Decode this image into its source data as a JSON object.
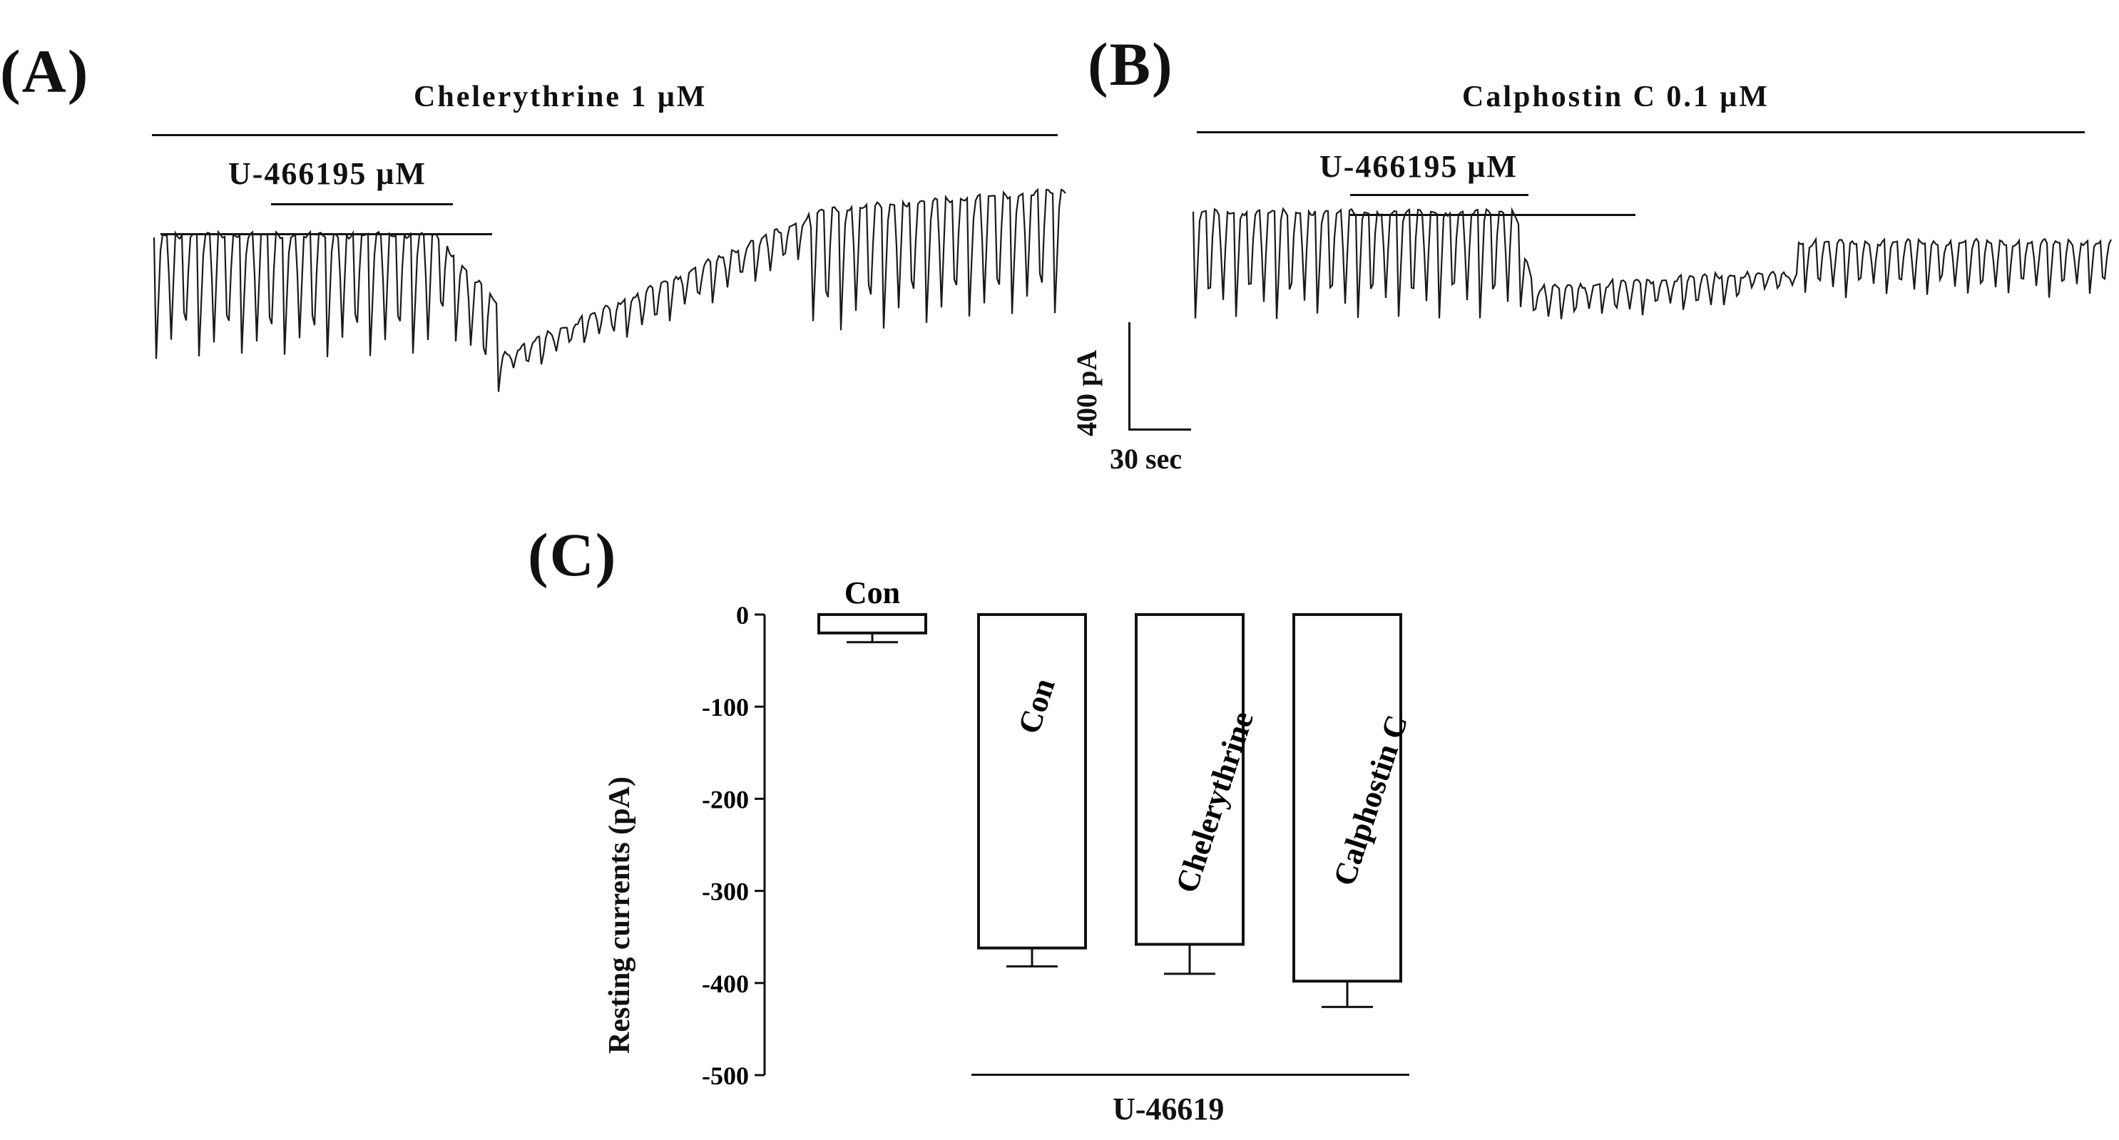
{
  "panelA": {
    "label": "(A)",
    "drug_label": "Chelerythrine 1 μM",
    "agonist_label": "U-466195 μM"
  },
  "panelB": {
    "label": "(B)",
    "drug_label": "Calphostin C 0.1 μM",
    "agonist_label": "U-466195 μM"
  },
  "scale_bar": {
    "y_label": "400 pA",
    "x_label": "30 sec"
  },
  "chart_data": {
    "type": "bar",
    "panel_label": "(C)",
    "ylabel": "Resting currents (pA)",
    "ylim": [
      -500,
      0
    ],
    "yticks": [
      0,
      -100,
      -200,
      -300,
      -400,
      -500
    ],
    "ytick_labels": [
      "0",
      "-100",
      "-200",
      "-300",
      "-400",
      "-500"
    ],
    "categories": [
      "Con",
      "Con",
      "Chelerythrine",
      "Calphostin C"
    ],
    "values": [
      -20,
      -362,
      -358,
      -398
    ],
    "errors": [
      10,
      20,
      32,
      28
    ],
    "group_label": "U-46619",
    "grid": false,
    "colors": {
      "bar_fill": "#ffffff",
      "stroke": "#111111"
    }
  }
}
